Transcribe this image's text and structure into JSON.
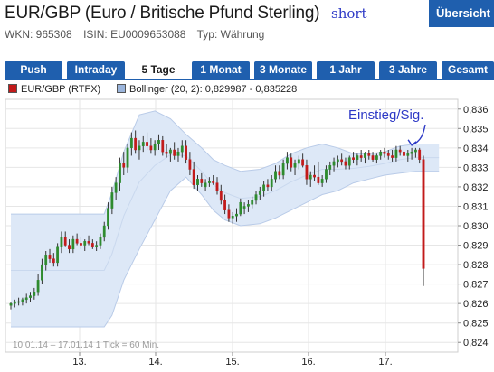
{
  "header": {
    "title": "EUR/GBP (Euro / Britische Pfund Sterling)",
    "annotation": "short",
    "overview_button": "Übersicht"
  },
  "meta": {
    "wkn": "WKN: 965308",
    "isin": "ISIN: EU0009653088",
    "type": "Typ: Währung"
  },
  "tabs": [
    {
      "label": "Push",
      "active": false
    },
    {
      "label": "Intraday",
      "active": false
    },
    {
      "label": "5 Tage",
      "active": true
    },
    {
      "label": "1 Monat",
      "active": false
    },
    {
      "label": "3 Monate",
      "active": false
    },
    {
      "label": "1 Jahr",
      "active": false
    },
    {
      "label": "3 Jahre",
      "active": false
    },
    {
      "label": "Gesamt",
      "active": false
    }
  ],
  "colors": {
    "brand": "#1f5fae",
    "up": "#2e8b2e",
    "down": "#c21a1a",
    "band_fill": "#dde8f7",
    "band_line": "#b9cbe8",
    "annotation": "#2d39c6"
  },
  "chart_data": {
    "type": "candlestick",
    "legend": [
      {
        "name": "EUR/GBP (RTFX)",
        "color": "#c21a1a"
      },
      {
        "name": "Bollinger (20, 2): 0,829987 - 0,835228",
        "color": "#9bb5dc"
      }
    ],
    "y_ticks": [
      "0,836",
      "0,835",
      "0,834",
      "0,833",
      "0,832",
      "0,831",
      "0,830",
      "0,829",
      "0,828",
      "0,827",
      "0,826",
      "0,825",
      "0,824"
    ],
    "ylim": [
      0.8235,
      0.8365
    ],
    "x_ticks": [
      "13.",
      "14.",
      "15.",
      "16.",
      "17."
    ],
    "info": "10.01.14 – 17.01.14    1 Tick = 60 Min.",
    "annotation": "Einstieg/Sig.",
    "annotation_target_index": 103,
    "grid": true,
    "candles": [
      [
        0.8259,
        0.8261,
        0.8257,
        0.826
      ],
      [
        0.826,
        0.8262,
        0.8258,
        0.8261
      ],
      [
        0.8261,
        0.8263,
        0.8259,
        0.8261
      ],
      [
        0.8261,
        0.8263,
        0.8259,
        0.8262
      ],
      [
        0.8262,
        0.8265,
        0.826,
        0.8263
      ],
      [
        0.8263,
        0.8266,
        0.8261,
        0.8264
      ],
      [
        0.8264,
        0.8268,
        0.8262,
        0.8266
      ],
      [
        0.8266,
        0.8275,
        0.8264,
        0.8272
      ],
      [
        0.8272,
        0.8283,
        0.827,
        0.828
      ],
      [
        0.828,
        0.8287,
        0.8277,
        0.8285
      ],
      [
        0.8285,
        0.8288,
        0.8281,
        0.8283
      ],
      [
        0.8283,
        0.8286,
        0.8279,
        0.8281
      ],
      [
        0.8281,
        0.8291,
        0.8279,
        0.8289
      ],
      [
        0.8289,
        0.8297,
        0.8286,
        0.8294
      ],
      [
        0.8294,
        0.8297,
        0.8289,
        0.829
      ],
      [
        0.829,
        0.8293,
        0.8286,
        0.8288
      ],
      [
        0.8288,
        0.8295,
        0.8286,
        0.8293
      ],
      [
        0.8293,
        0.8296,
        0.829,
        0.8291
      ],
      [
        0.8291,
        0.8294,
        0.8288,
        0.829
      ],
      [
        0.829,
        0.8293,
        0.8287,
        0.8292
      ],
      [
        0.8292,
        0.8295,
        0.829,
        0.8291
      ],
      [
        0.8291,
        0.8293,
        0.8288,
        0.8289
      ],
      [
        0.8289,
        0.8292,
        0.8287,
        0.829
      ],
      [
        0.829,
        0.8296,
        0.8288,
        0.8294
      ],
      [
        0.8294,
        0.8302,
        0.8292,
        0.83
      ],
      [
        0.83,
        0.8312,
        0.8298,
        0.8309
      ],
      [
        0.8309,
        0.832,
        0.8306,
        0.8317
      ],
      [
        0.8317,
        0.8325,
        0.8313,
        0.8322
      ],
      [
        0.8322,
        0.8335,
        0.8318,
        0.8332
      ],
      [
        0.8332,
        0.8338,
        0.8326,
        0.833
      ],
      [
        0.833,
        0.8342,
        0.8327,
        0.834
      ],
      [
        0.834,
        0.8348,
        0.8336,
        0.8345
      ],
      [
        0.8345,
        0.8349,
        0.8337,
        0.8339
      ],
      [
        0.8339,
        0.8344,
        0.8334,
        0.8341
      ],
      [
        0.8341,
        0.8346,
        0.8338,
        0.8343
      ],
      [
        0.8343,
        0.8348,
        0.8339,
        0.8341
      ],
      [
        0.8341,
        0.8345,
        0.8337,
        0.8339
      ],
      [
        0.8339,
        0.8344,
        0.8336,
        0.8342
      ],
      [
        0.8342,
        0.8347,
        0.8339,
        0.8344
      ],
      [
        0.8344,
        0.8346,
        0.8336,
        0.8338
      ],
      [
        0.8338,
        0.8342,
        0.8335,
        0.8337
      ],
      [
        0.8337,
        0.834,
        0.8333,
        0.8339
      ],
      [
        0.8339,
        0.8343,
        0.8334,
        0.8336
      ],
      [
        0.8336,
        0.834,
        0.8333,
        0.8338
      ],
      [
        0.8338,
        0.8344,
        0.8335,
        0.8341
      ],
      [
        0.8341,
        0.8344,
        0.8332,
        0.8334
      ],
      [
        0.8334,
        0.8338,
        0.8326,
        0.8329
      ],
      [
        0.8329,
        0.8333,
        0.8319,
        0.8321
      ],
      [
        0.8321,
        0.8326,
        0.8318,
        0.8324
      ],
      [
        0.8324,
        0.8327,
        0.832,
        0.8322
      ],
      [
        0.832,
        0.8324,
        0.8318,
        0.8322
      ],
      [
        0.8322,
        0.8325,
        0.832,
        0.8323
      ],
      [
        0.8323,
        0.8326,
        0.8321,
        0.8322
      ],
      [
        0.8322,
        0.8325,
        0.8316,
        0.8318
      ],
      [
        0.8318,
        0.8321,
        0.8311,
        0.8313
      ],
      [
        0.8313,
        0.8316,
        0.8306,
        0.8308
      ],
      [
        0.8308,
        0.8311,
        0.8302,
        0.8304
      ],
      [
        0.8304,
        0.8307,
        0.8301,
        0.8305
      ],
      [
        0.8305,
        0.8309,
        0.8302,
        0.8306
      ],
      [
        0.8306,
        0.8314,
        0.8305,
        0.8312
      ],
      [
        0.8309,
        0.8312,
        0.8306,
        0.831
      ],
      [
        0.831,
        0.8313,
        0.8307,
        0.8311
      ],
      [
        0.8311,
        0.8315,
        0.8309,
        0.8313
      ],
      [
        0.8313,
        0.8318,
        0.8311,
        0.8316
      ],
      [
        0.8316,
        0.832,
        0.8313,
        0.8318
      ],
      [
        0.8318,
        0.8323,
        0.8315,
        0.8321
      ],
      [
        0.8321,
        0.8324,
        0.8318,
        0.832
      ],
      [
        0.832,
        0.8326,
        0.8318,
        0.8324
      ],
      [
        0.8324,
        0.8331,
        0.8322,
        0.8328
      ],
      [
        0.8328,
        0.8331,
        0.8324,
        0.8326
      ],
      [
        0.8326,
        0.8334,
        0.8324,
        0.8332
      ],
      [
        0.8332,
        0.8338,
        0.8329,
        0.8335
      ],
      [
        0.8335,
        0.8337,
        0.8328,
        0.833
      ],
      [
        0.833,
        0.8334,
        0.8326,
        0.8332
      ],
      [
        0.8332,
        0.8336,
        0.8329,
        0.8334
      ],
      [
        0.8334,
        0.8337,
        0.833,
        0.8331
      ],
      [
        0.8331,
        0.8334,
        0.8321,
        0.8324
      ],
      [
        0.8324,
        0.8328,
        0.832,
        0.8326
      ],
      [
        0.8326,
        0.8331,
        0.8323,
        0.8325
      ],
      [
        0.8325,
        0.8333,
        0.8321,
        0.8322
      ],
      [
        0.8322,
        0.8326,
        0.832,
        0.8324
      ],
      [
        0.8324,
        0.8331,
        0.8322,
        0.8329
      ],
      [
        0.8329,
        0.8333,
        0.8326,
        0.8331
      ],
      [
        0.8331,
        0.8335,
        0.8328,
        0.8333
      ],
      [
        0.8333,
        0.8336,
        0.833,
        0.8334
      ],
      [
        0.8334,
        0.8337,
        0.8331,
        0.8333
      ],
      [
        0.8333,
        0.8335,
        0.8329,
        0.8331
      ],
      [
        0.8331,
        0.8336,
        0.8329,
        0.8335
      ],
      [
        0.8335,
        0.8338,
        0.8332,
        0.8334
      ],
      [
        0.8334,
        0.8337,
        0.8331,
        0.8336
      ],
      [
        0.8336,
        0.8339,
        0.8333,
        0.8335
      ],
      [
        0.8335,
        0.8338,
        0.8332,
        0.8337
      ],
      [
        0.8337,
        0.8339,
        0.8334,
        0.8336
      ],
      [
        0.8336,
        0.8338,
        0.8333,
        0.8334
      ],
      [
        0.8334,
        0.8337,
        0.8332,
        0.8336
      ],
      [
        0.8336,
        0.8339,
        0.8334,
        0.8338
      ],
      [
        0.8338,
        0.834,
        0.8335,
        0.8337
      ],
      [
        0.8337,
        0.8339,
        0.8334,
        0.8336
      ],
      [
        0.8336,
        0.8339,
        0.8333,
        0.8335
      ],
      [
        0.8335,
        0.8341,
        0.8333,
        0.8339
      ],
      [
        0.8339,
        0.8341,
        0.8336,
        0.8338
      ],
      [
        0.8338,
        0.834,
        0.8335,
        0.8336
      ],
      [
        0.8336,
        0.8339,
        0.8333,
        0.8337
      ],
      [
        0.8337,
        0.834,
        0.8334,
        0.8338
      ],
      [
        0.8338,
        0.834,
        0.8335,
        0.8339
      ],
      [
        0.8339,
        0.834,
        0.8332,
        0.8334
      ],
      [
        0.8334,
        0.8336,
        0.8269,
        0.8278
      ]
    ],
    "bollinger_upper": [
      [
        0,
        0.8306
      ],
      [
        24,
        0.8306
      ],
      [
        26,
        0.8317
      ],
      [
        29,
        0.8338
      ],
      [
        33,
        0.8357
      ],
      [
        37,
        0.8359
      ],
      [
        41,
        0.8355
      ],
      [
        45,
        0.8347
      ],
      [
        49,
        0.834
      ],
      [
        52,
        0.8334
      ],
      [
        55,
        0.8331
      ],
      [
        59,
        0.8328
      ],
      [
        64,
        0.8329
      ],
      [
        68,
        0.8332
      ],
      [
        72,
        0.8337
      ],
      [
        76,
        0.834
      ],
      [
        80,
        0.8342
      ],
      [
        84,
        0.834
      ],
      [
        88,
        0.8337
      ],
      [
        92,
        0.8337
      ],
      [
        96,
        0.8338
      ],
      [
        100,
        0.8341
      ],
      [
        104,
        0.8342
      ],
      [
        110,
        0.8342
      ]
    ],
    "bollinger_lower": [
      [
        0,
        0.8248
      ],
      [
        24,
        0.8248
      ],
      [
        26,
        0.8254
      ],
      [
        29,
        0.8272
      ],
      [
        33,
        0.8288
      ],
      [
        37,
        0.8303
      ],
      [
        41,
        0.8318
      ],
      [
        45,
        0.8325
      ],
      [
        49,
        0.8316
      ],
      [
        52,
        0.8308
      ],
      [
        55,
        0.8303
      ],
      [
        59,
        0.83
      ],
      [
        64,
        0.8301
      ],
      [
        68,
        0.8304
      ],
      [
        72,
        0.8308
      ],
      [
        76,
        0.8312
      ],
      [
        80,
        0.8316
      ],
      [
        84,
        0.8318
      ],
      [
        88,
        0.8322
      ],
      [
        92,
        0.8324
      ],
      [
        96,
        0.8326
      ],
      [
        100,
        0.8327
      ],
      [
        104,
        0.8328
      ],
      [
        110,
        0.8328
      ]
    ]
  }
}
